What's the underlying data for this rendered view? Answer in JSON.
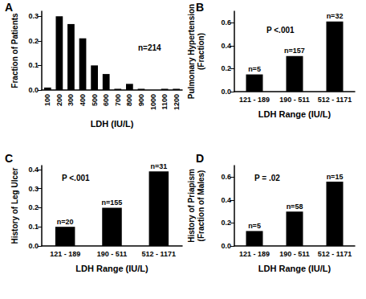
{
  "chart_data": [
    {
      "type": "bar",
      "panel": "A",
      "xlabel": "LDH (IU/L)",
      "ylabel": "Fraction of Patients",
      "categories": [
        "100",
        "200",
        "300",
        "400",
        "500",
        "600",
        "700",
        "800",
        "900",
        "1000",
        "1100",
        "1200"
      ],
      "values": [
        0.01,
        0.3,
        0.268,
        0.21,
        0.1,
        0.065,
        0.005,
        0.025,
        0.005,
        0.0,
        0.005,
        0.005
      ],
      "color": "#000000",
      "ylim": [
        0,
        0.32
      ],
      "yticks": [
        {
          "value": 0,
          "label": "0.0"
        },
        0.1,
        0.2,
        0.3
      ],
      "annotation": "n=214",
      "grid": false
    },
    {
      "type": "bar",
      "panel": "B",
      "xlabel": "LDH Range (IU/L)",
      "ylabel": "Pulmonary Hypertension\n(Fraction)",
      "categories": [
        "121 - 189",
        "190 - 511",
        "512 - 1171"
      ],
      "values": [
        0.15,
        0.31,
        0.61
      ],
      "bar_labels": [
        "n=5",
        "n=157",
        "n=32"
      ],
      "color": "#000000",
      "ylim": [
        0,
        0.7
      ],
      "yticks": [
        {
          "value": 0,
          "label": "0.0"
        },
        0.2,
        0.4,
        0.6
      ],
      "annotation": "P <.001",
      "grid": false
    },
    {
      "type": "bar",
      "panel": "C",
      "xlabel": "LDH Range (IU/L)",
      "ylabel": "History of Leg Ulcer",
      "categories": [
        "121 - 189",
        "190 - 511",
        "512 - 1171"
      ],
      "values": [
        0.1,
        0.2,
        0.39
      ],
      "bar_labels": [
        "n=20",
        "n=155",
        "n=31"
      ],
      "color": "#000000",
      "ylim": [
        0,
        0.42
      ],
      "yticks": [
        {
          "value": 0,
          "label": "0.0"
        },
        0.1,
        0.2,
        0.3,
        0.4
      ],
      "annotation": "P <.001",
      "grid": false
    },
    {
      "type": "bar",
      "panel": "D",
      "xlabel": "LDH Range (IU/L)",
      "ylabel": "History of Priapism\n(Fraction of Males)",
      "categories": [
        "121 - 189",
        "190 - 511",
        "512 - 1171"
      ],
      "values": [
        0.13,
        0.3,
        0.56
      ],
      "bar_labels": [
        "n=5",
        "n=58",
        "n=15"
      ],
      "color": "#000000",
      "ylim": [
        0,
        0.7
      ],
      "yticks": [
        {
          "value": 0,
          "label": "0.0"
        },
        0.2,
        0.4,
        0.6
      ],
      "annotation": "P = .02",
      "grid": false
    }
  ]
}
